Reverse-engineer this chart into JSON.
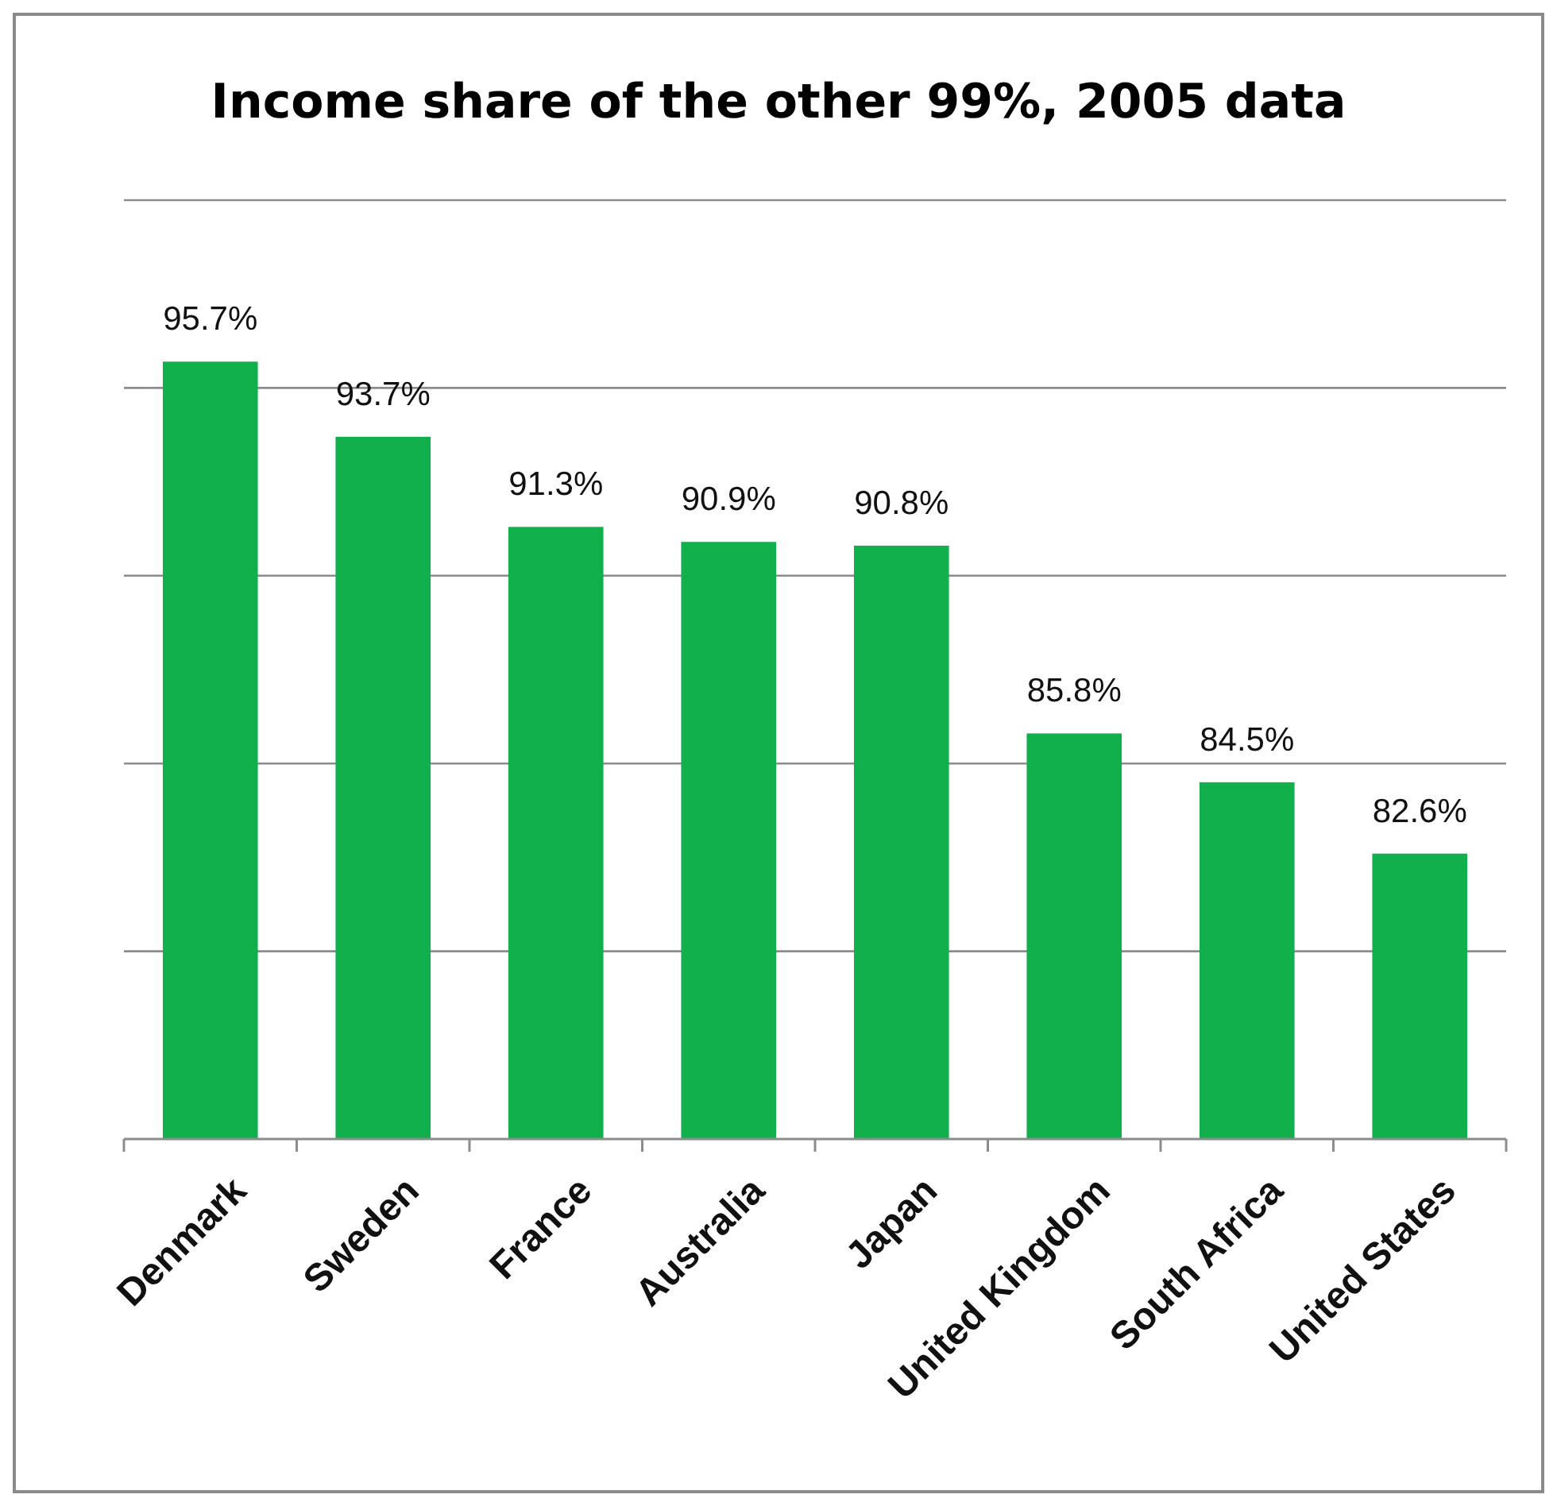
{
  "chart_data": {
    "type": "bar",
    "title": "Income share of the other 99%, 2005 data",
    "categories": [
      "Denmark",
      "Sweden",
      "France",
      "Australia",
      "Japan",
      "United Kingdom",
      "South Africa",
      "United States"
    ],
    "values": [
      95.7,
      93.7,
      91.3,
      90.9,
      90.8,
      85.8,
      84.5,
      82.6
    ],
    "value_labels": [
      "95.7%",
      "93.7%",
      "91.3%",
      "90.9%",
      "90.8%",
      "85.8%",
      "84.5%",
      "82.6%"
    ],
    "color": "#12b04c",
    "ylim": [
      75,
      100
    ],
    "yticks": [
      {
        "value": 75,
        "label": null
      },
      {
        "value": 80,
        "label": null
      },
      {
        "value": 85,
        "label": null
      },
      {
        "value": 90,
        "label": null
      },
      {
        "value": 95,
        "label": null
      },
      {
        "value": 100,
        "label": null
      }
    ],
    "grid": "y",
    "tick_labels": "x"
  }
}
